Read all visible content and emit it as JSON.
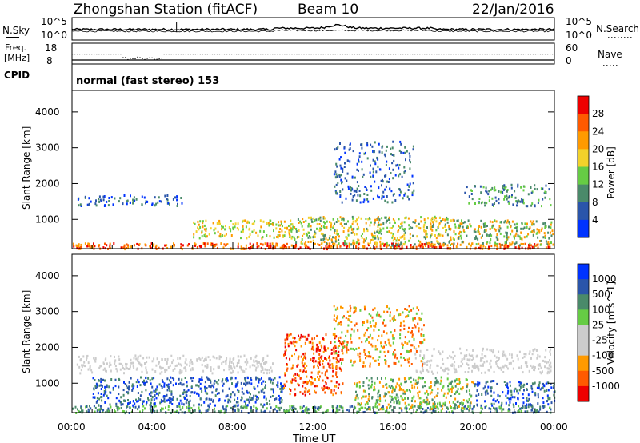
{
  "header": {
    "station": "Zhongshan Station (fitACF)",
    "beam": "Beam 10",
    "date": "22/Jan/2016"
  },
  "noise_panel": {
    "left_label": "N.Sky",
    "right_label": "N.Search",
    "left_ticks": [
      "10^5",
      "10^0"
    ],
    "right_ticks": [
      "10^5",
      "10^0"
    ]
  },
  "freq_panel": {
    "left_label_1": "Freq.",
    "left_label_2": "[MHz]",
    "right_label": "Nave",
    "left_ticks": [
      "18",
      "8"
    ],
    "right_ticks": [
      "60",
      "0"
    ]
  },
  "cpid": {
    "label": "CPID",
    "text": "normal (fast stereo) 153"
  },
  "time_axis": {
    "label": "Time UT",
    "ticks": [
      "00:00",
      "04:00",
      "08:00",
      "12:00",
      "16:00",
      "20:00",
      "00:00"
    ]
  },
  "chart_data": [
    {
      "type": "heatmap",
      "title": "",
      "ylabel": "Slant Range [km]",
      "yticks": [
        1000,
        2000,
        3000,
        4000
      ],
      "ylim": [
        180,
        4600
      ],
      "xlim_hours": [
        0,
        24
      ],
      "colorbar": {
        "label": "Power [dB]",
        "ticks": [
          "28",
          "24",
          "20",
          "16",
          "12",
          "8",
          "4"
        ],
        "colors": [
          "#0033ff",
          "#2a55aa",
          "#4a8a6a",
          "#66cc44",
          "#f2d22a",
          "#ff9a00",
          "#ff5a00",
          "#ee0000"
        ]
      },
      "scatter_regions": [
        {
          "t0": 0.0,
          "t1": 24.0,
          "r0": 200,
          "r1": 360,
          "color_idx": [
            6,
            7,
            5
          ],
          "density": 0.9
        },
        {
          "t0": 0.2,
          "t1": 5.5,
          "r0": 1400,
          "r1": 1700,
          "color_idx": [
            1,
            2,
            0
          ],
          "density": 0.45
        },
        {
          "t0": 6.0,
          "t1": 11.0,
          "r0": 500,
          "r1": 1000,
          "color_idx": [
            4,
            5,
            3
          ],
          "density": 0.55
        },
        {
          "t0": 11.0,
          "t1": 19.0,
          "r0": 300,
          "r1": 1100,
          "color_idx": [
            3,
            4,
            5,
            2
          ],
          "density": 0.6
        },
        {
          "t0": 13.0,
          "t1": 17.0,
          "r0": 1500,
          "r1": 3200,
          "color_idx": [
            1,
            0,
            2
          ],
          "density": 0.3
        },
        {
          "t0": 19.0,
          "t1": 24.0,
          "r0": 300,
          "r1": 1000,
          "color_idx": [
            2,
            3,
            5
          ],
          "density": 0.55
        },
        {
          "t0": 19.5,
          "t1": 23.8,
          "r0": 1400,
          "r1": 2000,
          "color_idx": [
            1,
            2,
            3
          ],
          "density": 0.4
        }
      ]
    },
    {
      "type": "heatmap",
      "title": "",
      "ylabel": "Slant Range [km]",
      "yticks": [
        1000,
        2000,
        3000,
        4000
      ],
      "ylim": [
        180,
        4600
      ],
      "xlim_hours": [
        0,
        24
      ],
      "colorbar": {
        "label": "Velocity [m s^-1]",
        "ticks": [
          "1000",
          "500",
          "100",
          "25",
          "-25",
          "-100",
          "-500",
          "-1000"
        ],
        "colors": [
          "#ee0000",
          "#ff5a00",
          "#ff9a00",
          "#cccccc",
          "#cccccc",
          "#66cc44",
          "#4a8a6a",
          "#2a55aa",
          "#0033ff"
        ]
      },
      "scatter_regions": [
        {
          "t0": 0.0,
          "t1": 24.0,
          "r0": 200,
          "r1": 400,
          "color_idx": [
            6,
            5,
            7
          ],
          "density": 0.8
        },
        {
          "t0": 0.2,
          "t1": 10.0,
          "r0": 1300,
          "r1": 1800,
          "color_idx": [
            3,
            4
          ],
          "density": 0.5
        },
        {
          "t0": 1.0,
          "t1": 10.5,
          "r0": 400,
          "r1": 1200,
          "color_idx": [
            7,
            8,
            6
          ],
          "density": 0.55
        },
        {
          "t0": 10.5,
          "t1": 13.5,
          "r0": 700,
          "r1": 2400,
          "color_idx": [
            1,
            0,
            2
          ],
          "density": 0.5
        },
        {
          "t0": 13.0,
          "t1": 17.5,
          "r0": 1500,
          "r1": 3200,
          "color_idx": [
            2,
            1,
            5
          ],
          "density": 0.35
        },
        {
          "t0": 14.0,
          "t1": 20.0,
          "r0": 300,
          "r1": 1200,
          "color_idx": [
            2,
            6,
            5
          ],
          "density": 0.55
        },
        {
          "t0": 17.0,
          "t1": 23.8,
          "r0": 1300,
          "r1": 2000,
          "color_idx": [
            3,
            4
          ],
          "density": 0.45
        },
        {
          "t0": 20.0,
          "t1": 24.0,
          "r0": 400,
          "r1": 1100,
          "color_idx": [
            7,
            6,
            8
          ],
          "density": 0.5
        }
      ]
    }
  ]
}
